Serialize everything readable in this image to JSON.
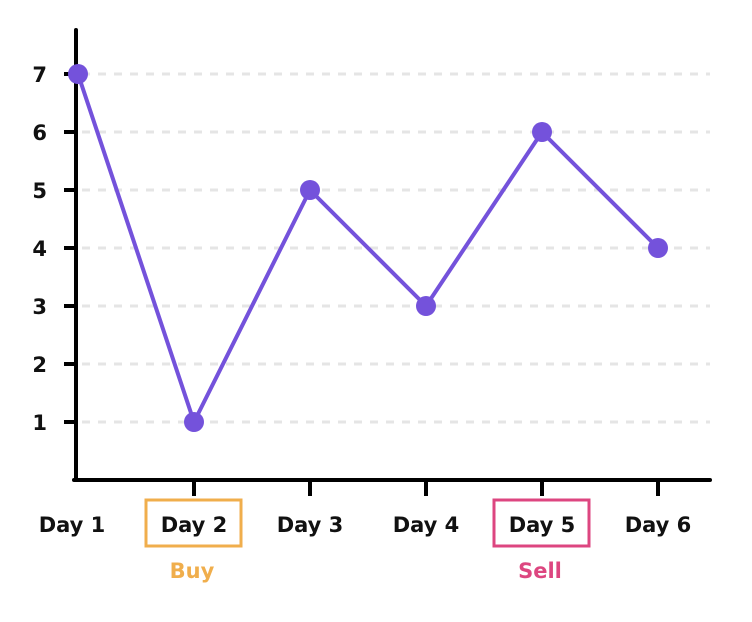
{
  "chart_data": {
    "type": "line",
    "title": "",
    "xlabel": "",
    "ylabel": "",
    "categories": [
      "Day 1",
      "Day 2",
      "Day 3",
      "Day 4",
      "Day 5",
      "Day 6"
    ],
    "series": [
      {
        "values": [
          7,
          1,
          5,
          3,
          6,
          4
        ]
      }
    ],
    "ylim": [
      0,
      7.7
    ],
    "yticks": [
      1,
      2,
      3,
      4,
      5,
      6,
      7
    ],
    "grid": "horizontal dashed",
    "annotations": [
      {
        "category": "Day 2",
        "label": "Buy",
        "color": "#F0AE4C"
      },
      {
        "category": "Day 5",
        "label": "Sell",
        "color": "#DD4680"
      }
    ],
    "colors": {
      "line": "#7452DB",
      "axis": "#000000",
      "grid": "#E5E5E5"
    }
  }
}
